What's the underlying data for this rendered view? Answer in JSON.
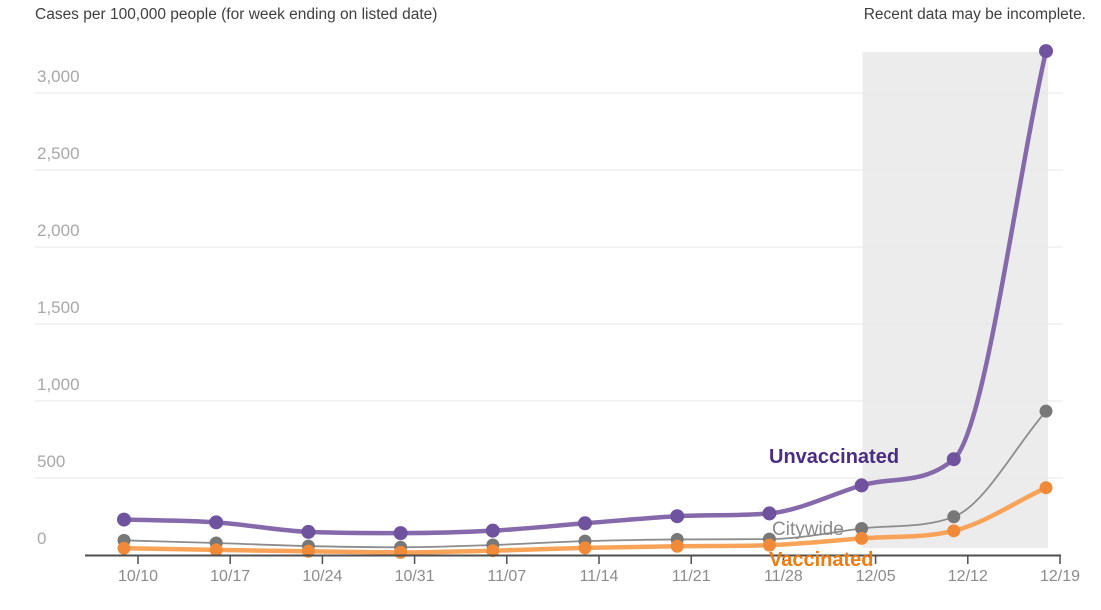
{
  "header": {
    "title": "Cases per 100,000 people (for week ending on listed date)",
    "note": "Recent data may be incomplete."
  },
  "colors": {
    "grid": "#e7e7e7",
    "axis": "#4f4f4f",
    "incomplete_region": "#ececec",
    "y_tick_label": "#a8a8a8",
    "x_tick_label": "#8b8b8b"
  },
  "chart_data": {
    "type": "line",
    "title": "Cases per 100,000 people (for week ending on listed date)",
    "note": "Recent data may be incomplete.",
    "x": [
      "10/10",
      "10/17",
      "10/24",
      "10/31",
      "11/07",
      "11/14",
      "11/21",
      "11/28",
      "12/05",
      "12/12",
      "12/19"
    ],
    "series": [
      {
        "name": "Unvaccinated",
        "values": [
          230,
          212,
          150,
          142,
          158,
          206,
          252,
          270,
          452,
          622,
          3272
        ],
        "line_color": "#8569ab",
        "dot_color": "#6f539f",
        "label_color": "#4b2c85",
        "line_width": 4.5,
        "dot_radius": 7
      },
      {
        "name": "Citywide",
        "values": [
          95,
          78,
          58,
          50,
          65,
          90,
          101,
          103,
          172,
          248,
          934
        ],
        "line_color": "#8c8c8c",
        "dot_color": "#787878",
        "label_color": "#8a8a8a",
        "line_width": 1.8,
        "dot_radius": 6.5
      },
      {
        "name": "Vaccinated",
        "values": [
          44,
          33,
          24,
          17,
          28,
          46,
          57,
          64,
          108,
          157,
          437
        ],
        "line_color": "#f9a358",
        "dot_color": "#f18a38",
        "label_color": "#ee7c12",
        "line_width": 4.5,
        "dot_radius": 6.5
      }
    ],
    "yticks": [
      0,
      500,
      1000,
      1500,
      2000,
      2500,
      3000
    ],
    "ylim": [
      0,
      3300
    ],
    "grid": true,
    "legend": "inline-annotations",
    "incomplete_region": {
      "from": "12/05",
      "to": "12/19"
    }
  }
}
